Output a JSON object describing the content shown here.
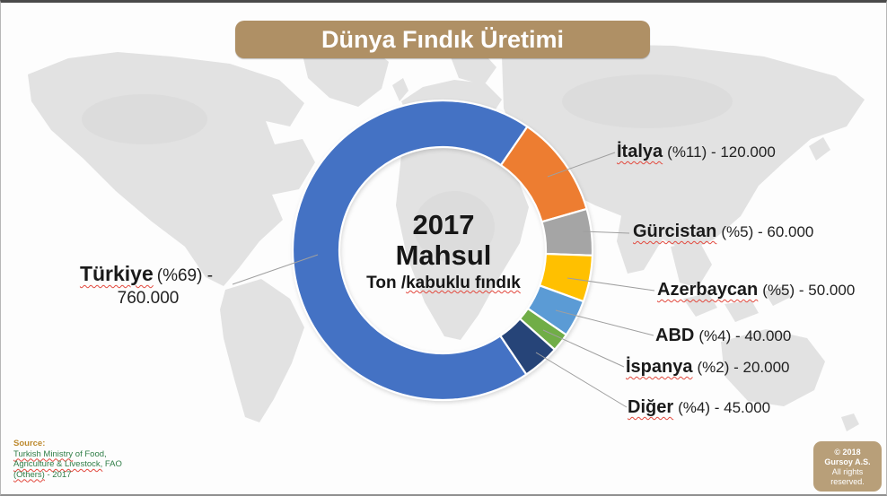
{
  "title": "Dünya Fındık Üretimi",
  "theme": {
    "banner_bg": "#AF9065",
    "copyright_bg": "#B89F79",
    "source_heading_color": "#BD8A2E",
    "source_text_color": "#2E7D46",
    "leader_line_color": "#9f9f9f",
    "spellcheck_underline_color": "#e2483d"
  },
  "chart_data": {
    "type": "pie",
    "subtype": "donut",
    "title": "Dünya Fındık Üretimi",
    "year": "2017",
    "unit": "Ton /kabuklu fındık",
    "start_angle_deg": 146,
    "inner_radius_ratio": 0.69,
    "legend": "none (leader-line callouts)",
    "center_label": {
      "year": "2017",
      "title": "Mahsul",
      "unit_prefix": "Ton /",
      "unit_em": "kabuklu fındık"
    },
    "slices": [
      {
        "label": "Türkiye",
        "percent": 69,
        "percent_label": "(%69)",
        "value": 760000,
        "value_label": "760.000",
        "color": "#4472C4",
        "callout_suffix": "(%69) -",
        "callout_value_line": "760.000"
      },
      {
        "label": "İtalya",
        "percent": 11,
        "percent_label": "(%11)",
        "value": 120000,
        "value_label": "120.000",
        "color": "#ED7D31",
        "callout_suffix": "(%11) - 120.000"
      },
      {
        "label": "Gürcistan",
        "percent": 5,
        "percent_label": "(%5)",
        "value": 60000,
        "value_label": "60.000",
        "color": "#A5A5A5",
        "callout_suffix": "(%5) - 60.000"
      },
      {
        "label": "Azerbaycan",
        "percent": 5,
        "percent_label": "(%5)",
        "value": 50000,
        "value_label": "50.000",
        "color": "#FFC000",
        "callout_suffix": "(%5) - 50.000"
      },
      {
        "label": "ABD",
        "percent": 4,
        "percent_label": "(%4)",
        "value": 40000,
        "value_label": "40.000",
        "color": "#5B9BD5",
        "callout_suffix": "(%4) - 40.000"
      },
      {
        "label": "İspanya",
        "percent": 2,
        "percent_label": "(%2)",
        "value": 20000,
        "value_label": "20.000",
        "color": "#70AD47",
        "callout_suffix": "(%2) - 20.000"
      },
      {
        "label": "Diğer",
        "percent": 4,
        "percent_label": "(%4)",
        "value": 45000,
        "value_label": "45.000",
        "color": "#264478",
        "callout_suffix": "(%4) - 45.000"
      }
    ]
  },
  "source": {
    "heading": "Source:",
    "lines": [
      {
        "m": "Turkish Ministry",
        "r": " of Food,"
      },
      {
        "m": "Agriculture & Livestock,",
        "r": " FAO"
      },
      {
        "m": "(Others)",
        "r": " - 2017"
      }
    ]
  },
  "copyright": {
    "line1": "© 2018",
    "line2": "Gursoy A.S.",
    "line3": "All rights",
    "line4": "reserved."
  }
}
